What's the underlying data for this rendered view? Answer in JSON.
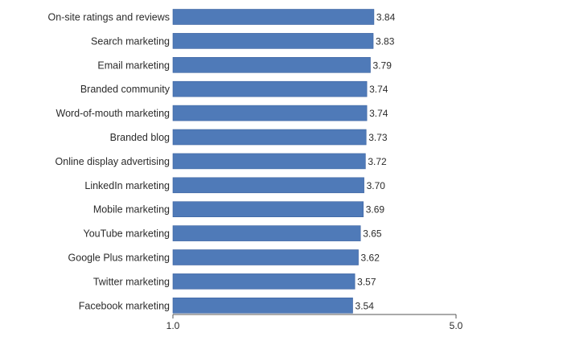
{
  "chart_data": {
    "type": "bar",
    "orientation": "horizontal",
    "categories": [
      "On-site ratings and reviews",
      "Search marketing",
      "Email marketing",
      "Branded community",
      "Word-of-mouth marketing",
      "Branded blog",
      "Online display advertising",
      "LinkedIn marketing",
      "Mobile marketing",
      "YouTube marketing",
      "Google Plus marketing",
      "Twitter marketing",
      "Facebook marketing"
    ],
    "values": [
      3.84,
      3.83,
      3.79,
      3.74,
      3.74,
      3.73,
      3.72,
      3.7,
      3.69,
      3.65,
      3.62,
      3.57,
      3.54
    ],
    "value_labels": [
      "3.84",
      "3.83",
      "3.79",
      "3.74",
      "3.74",
      "3.73",
      "3.72",
      "3.70",
      "3.69",
      "3.65",
      "3.62",
      "3.57",
      "3.54"
    ],
    "xlim": [
      1.0,
      5.0
    ],
    "x_ticks": [
      {
        "value": 1.0,
        "label": "1.0"
      },
      {
        "value": 5.0,
        "label": "5.0"
      }
    ],
    "grid": false,
    "legend": "none",
    "bar_color": "#4f7ab8",
    "bar_edge_color": "#3c63a0",
    "axis_color": "#555555"
  }
}
